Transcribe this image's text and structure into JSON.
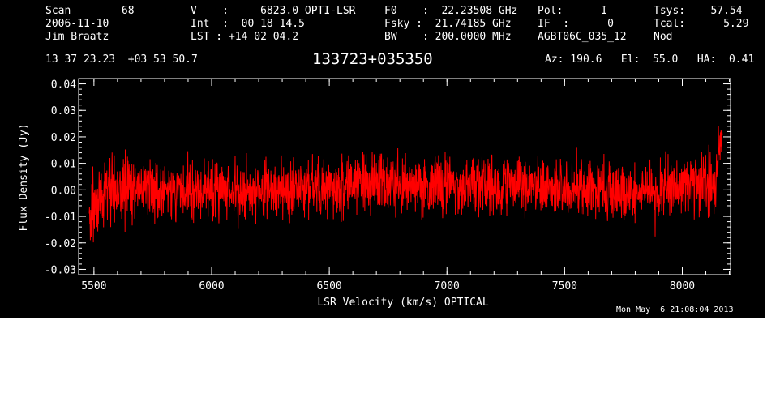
{
  "header": {
    "col1": [
      "Scan        68",
      "2006-11-10",
      "Jim Braatz"
    ],
    "col2": [
      "V    :     6823.0 OPTI-LSR",
      "Int  :  00 18 14.5",
      "LST : +14 02 04.2"
    ],
    "col3": [
      "F0    :  22.23508 GHz",
      "Fsky :  21.74185 GHz",
      "BW    : 200.0000 MHz"
    ],
    "col4": [
      "Pol:      I",
      "IF  :      0",
      "AGBT06C_035_12"
    ],
    "col5": [
      "Tsys:    57.54",
      "Tcal:      5.29",
      "Nod"
    ],
    "coords": "13 37 23.23  +03 53 50.7",
    "source": "133723+035350",
    "azelha": "Az: 190.6   El:  55.0   HA:  0.41",
    "timestamp": "Mon May  6 21:08:04 2013"
  },
  "colors": {
    "background": "#000000",
    "axes": "#ffffff",
    "trace": "#ff0000"
  },
  "chart_data": {
    "type": "line",
    "xlabel": "LSR Velocity (km/s) OPTICAL",
    "ylabel": "Flux Density (Jy)",
    "xlim": [
      5435,
      8205
    ],
    "ylim": [
      -0.032,
      0.042
    ],
    "x_ticks": [
      5500,
      6000,
      6500,
      7000,
      7500,
      8000
    ],
    "y_ticks": [
      -0.03,
      -0.02,
      -0.01,
      0.0,
      0.01,
      0.02,
      0.03,
      0.04
    ],
    "y_tick_labels": [
      "-0.03",
      "-0.02",
      "-0.01",
      "0.00",
      "0.01",
      "0.02",
      "0.03",
      "0.04"
    ],
    "series": [
      {
        "color": "#ff0000",
        "x_range": [
          5480,
          8170
        ],
        "envelope": {
          "x": [
            5480,
            5490,
            5500,
            5520,
            5550,
            5600,
            5700,
            5800,
            5900,
            6000,
            6100,
            6200,
            6300,
            6400,
            6500,
            6600,
            6700,
            6800,
            6900,
            7000,
            7100,
            7200,
            7300,
            7400,
            7500,
            7600,
            7700,
            7800,
            7900,
            8000,
            8050,
            8100,
            8120,
            8140,
            8150,
            8160,
            8170
          ],
          "mean": [
            -0.012,
            -0.008,
            -0.005,
            -0.002,
            0.0,
            0.001,
            0.001,
            0.0,
            0.0,
            0.0,
            0.0,
            0.0,
            0.0,
            0.001,
            0.001,
            0.002,
            0.002,
            0.001,
            0.001,
            0.002,
            0.002,
            0.001,
            0.001,
            0.001,
            0.0,
            0.0,
            -0.001,
            -0.001,
            0.0,
            0.001,
            0.002,
            0.003,
            0.004,
            0.006,
            0.01,
            0.016,
            0.02
          ],
          "scatter": [
            0.006,
            0.006,
            0.006,
            0.006,
            0.006,
            0.006,
            0.0055,
            0.0055,
            0.0055,
            0.0055,
            0.0055,
            0.0055,
            0.0055,
            0.0055,
            0.0055,
            0.0055,
            0.0055,
            0.0055,
            0.0055,
            0.0055,
            0.0055,
            0.0055,
            0.0055,
            0.0055,
            0.0055,
            0.0055,
            0.0055,
            0.0055,
            0.0055,
            0.0055,
            0.0055,
            0.006,
            0.006,
            0.006,
            0.006,
            0.006,
            0.006
          ]
        }
      }
    ]
  }
}
